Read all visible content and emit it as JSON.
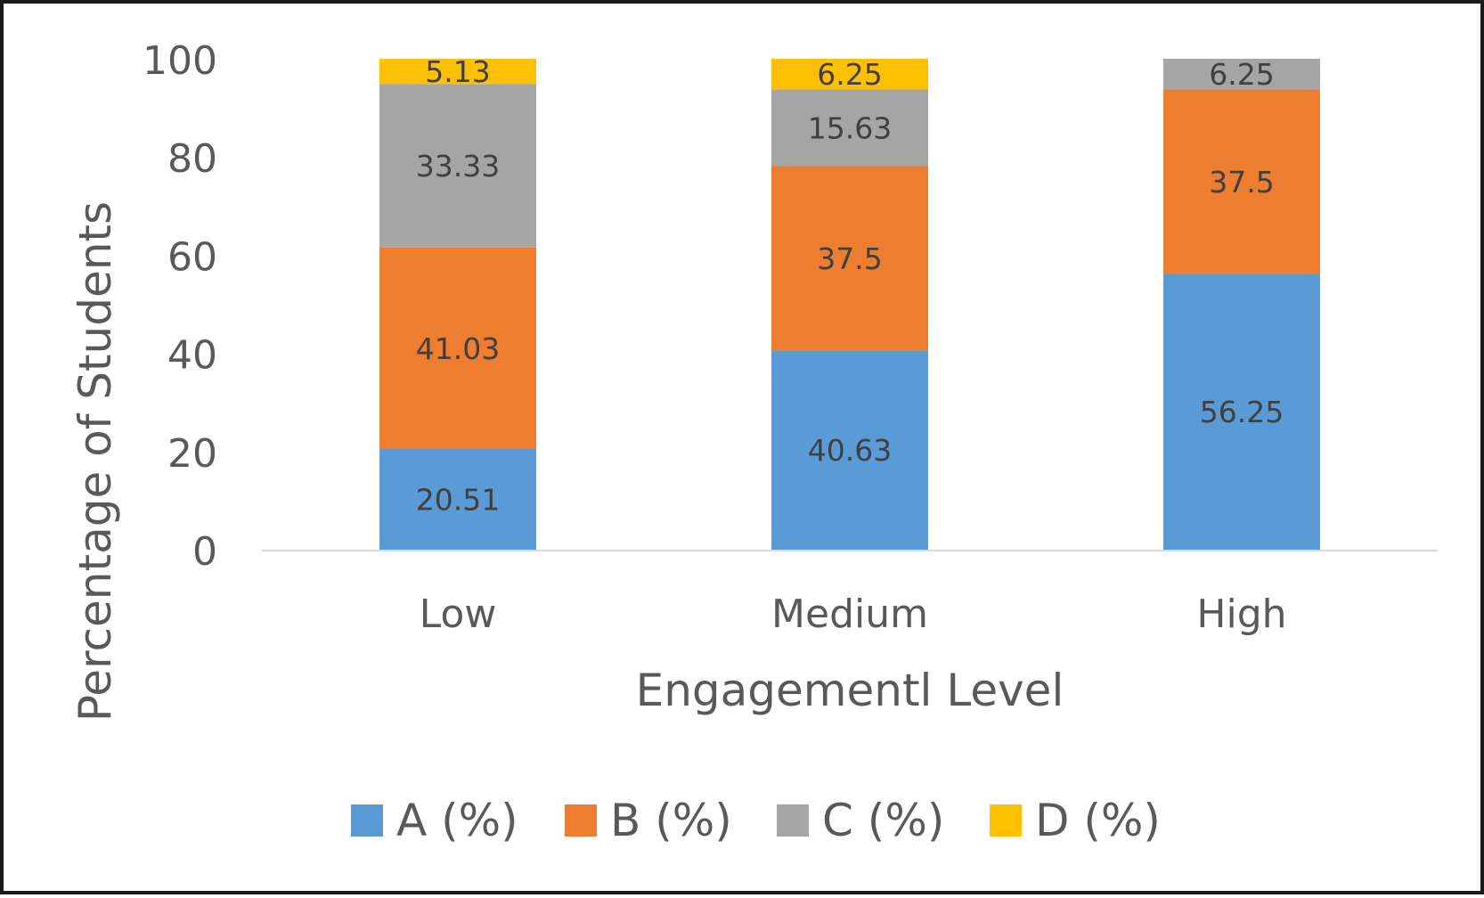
{
  "chart_data": {
    "type": "bar",
    "stacked": true,
    "title": "",
    "xlabel": "Engagementl Level",
    "ylabel": "Percentage of Students",
    "categories": [
      "Low",
      "Medium",
      "High"
    ],
    "ylim": [
      0,
      100
    ],
    "yticks": [
      0,
      20,
      40,
      60,
      80,
      100
    ],
    "grid": false,
    "legend_position": "bottom",
    "series": [
      {
        "name": "A (%)",
        "color": "#5B9BD5",
        "values": [
          20.51,
          40.63,
          56.25
        ],
        "labels": [
          "20.51",
          "40.63",
          "56.25"
        ]
      },
      {
        "name": "B (%)",
        "color": "#ED7D31",
        "values": [
          41.03,
          37.5,
          37.5
        ],
        "labels": [
          "41.03",
          "37.5",
          "37.5"
        ]
      },
      {
        "name": "C (%)",
        "color": "#A5A5A5",
        "values": [
          33.33,
          15.63,
          6.25
        ],
        "labels": [
          "33.33",
          "15.63",
          "6.25"
        ]
      },
      {
        "name": "D (%)",
        "color": "#FFC000",
        "values": [
          5.13,
          6.25,
          0
        ],
        "labels": [
          "5.13",
          "6.25",
          ""
        ]
      }
    ]
  }
}
